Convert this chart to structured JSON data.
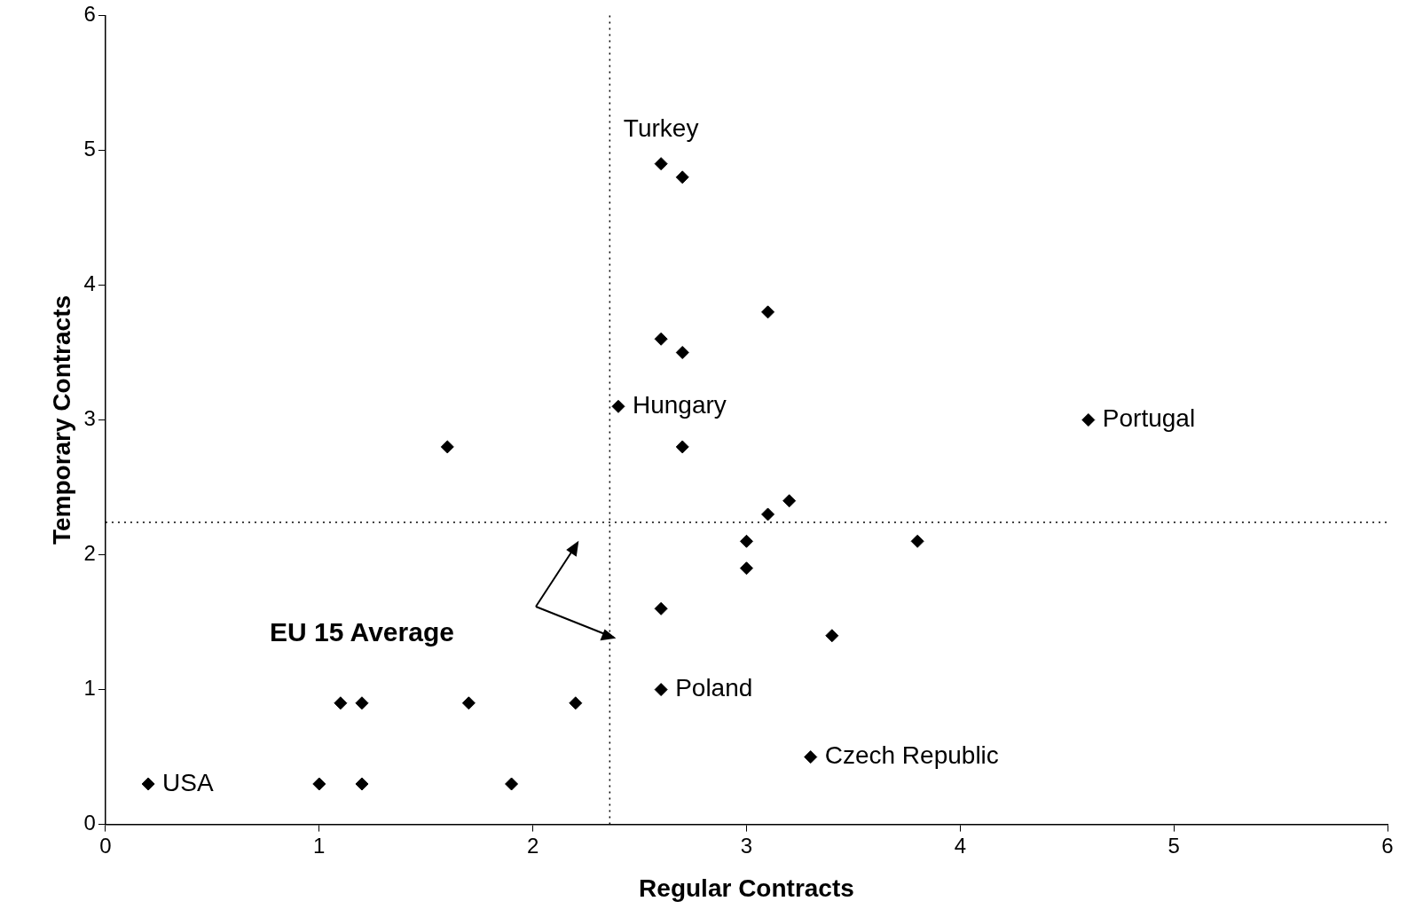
{
  "chart_data": {
    "type": "scatter",
    "xlabel": "Regular Contracts",
    "ylabel": "Temporary Contracts",
    "x": [
      0.2,
      1.0,
      1.2,
      1.9,
      1.1,
      1.2,
      1.7,
      2.2,
      1.6,
      2.4,
      2.6,
      2.7,
      3.1,
      2.6,
      2.7,
      2.7,
      3.2,
      3.1,
      3.0,
      3.8,
      3.0,
      2.6,
      3.4,
      2.6,
      3.3,
      4.6
    ],
    "values": [
      0.3,
      0.3,
      0.3,
      0.3,
      0.9,
      0.9,
      0.9,
      0.9,
      2.8,
      3.1,
      4.9,
      4.8,
      3.8,
      3.6,
      3.5,
      2.8,
      2.4,
      2.3,
      2.1,
      2.1,
      1.9,
      1.6,
      1.4,
      1.0,
      0.5,
      3.0
    ],
    "color": "#000000",
    "marker": "diamond",
    "grid": false,
    "legend": false,
    "xlim": [
      0,
      6
    ],
    "xticks": [
      0,
      1,
      2,
      3,
      4,
      5,
      6
    ],
    "ylim": [
      0,
      6
    ],
    "yticks": [
      0,
      1,
      2,
      3,
      4,
      5,
      6
    ],
    "ref_lines": [
      {
        "axis": "x",
        "value": 2.36,
        "color": "#000000",
        "line_style": "dotted"
      },
      {
        "axis": "y",
        "value": 2.24,
        "color": "#000000",
        "line_style": "dotted"
      }
    ],
    "annotations": [
      {
        "text": "USA",
        "x": 0.2,
        "y": 0.3
      },
      {
        "text": "Turkey",
        "x": 2.6,
        "y": 4.9
      },
      {
        "text": "Hungary",
        "x": 2.4,
        "y": 3.1
      },
      {
        "text": "Portugal",
        "x": 4.6,
        "y": 3.0
      },
      {
        "text": "Poland",
        "x": 2.6,
        "y": 1.0
      },
      {
        "text": "Czech Republic",
        "x": 3.3,
        "y": 0.5
      },
      "EU 15 Average"
    ]
  }
}
